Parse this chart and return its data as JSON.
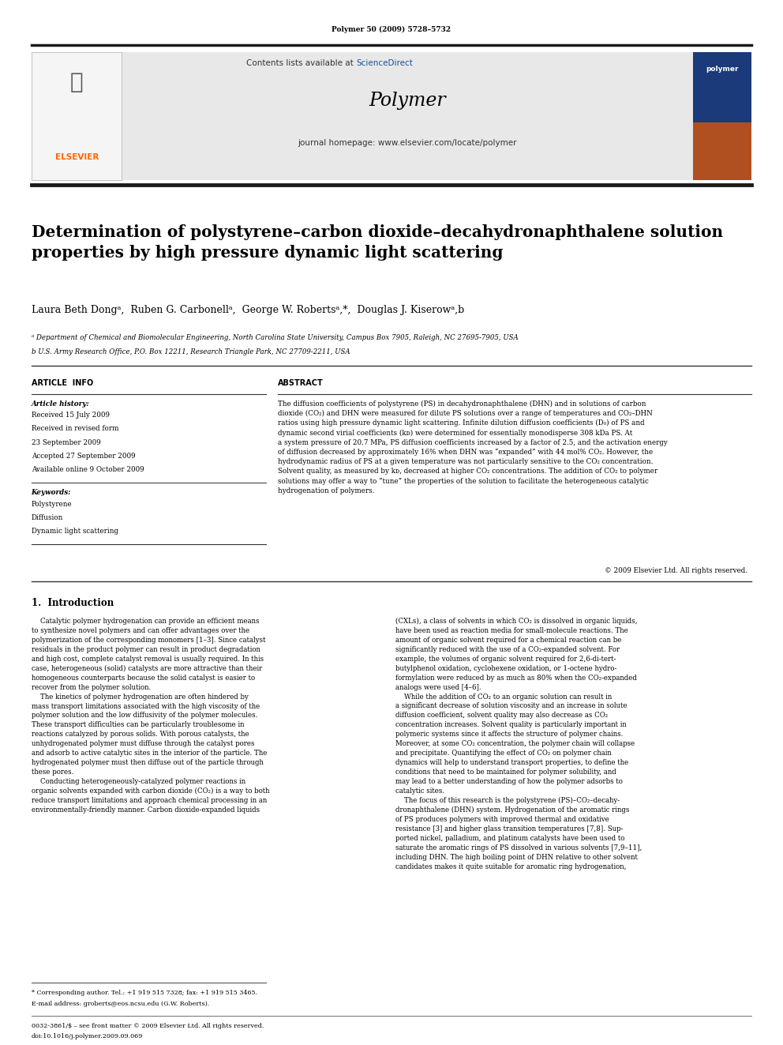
{
  "page_width": 9.92,
  "page_height": 13.23,
  "background_color": "#ffffff",
  "top_citation": "Polymer 50 (2009) 5728–5732",
  "header_bg": "#e8e8e8",
  "header_contents_text": "Contents lists available at ",
  "header_sciencedirect": "ScienceDirect",
  "header_journal": "Polymer",
  "header_homepage": "journal homepage: www.elsevier.com/locate/polymer",
  "dark_bar_color": "#1a1a1a",
  "elsevier_color": "#ff6600",
  "title": "Determination of polystyrene–carbon dioxide–decahydronaphthalene solution\nproperties by high pressure dynamic light scattering",
  "authors": "Laura Beth Dongᵃ,  Ruben G. Carbonellᵃ,  George W. Robertsᵃ,*,  Douglas J. Kiserowᵃ,b",
  "affil_a": "ᵃ Department of Chemical and Biomolecular Engineering, North Carolina State University, Campus Box 7905, Raleigh, NC 27695-7905, USA",
  "affil_b": "b U.S. Army Research Office, P.O. Box 12211, Research Triangle Park, NC 27709-2211, USA",
  "article_info_title": "ARTICLE  INFO",
  "abstract_title": "ABSTRACT",
  "article_history_label": "Article history:",
  "received1": "Received 15 July 2009",
  "received2": "Received in revised form",
  "received2b": "23 September 2009",
  "accepted": "Accepted 27 September 2009",
  "available": "Available online 9 October 2009",
  "keywords_label": "Keywords:",
  "keyword1": "Polystyrene",
  "keyword2": "Diffusion",
  "keyword3": "Dynamic light scattering",
  "abstract_text": "The diffusion coefficients of polystyrene (PS) in decahydronaphthalene (DHN) and in solutions of carbon\ndioxide (CO₂) and DHN were measured for dilute PS solutions over a range of temperatures and CO₂–DHN\nratios using high pressure dynamic light scattering. Infinite dilution diffusion coefficients (D₀) of PS and\ndynamic second virial coefficients (kᴅ) were determined for essentially monodisperse 308 kDa PS. At\na system pressure of 20.7 MPa, PS diffusion coefficients increased by a factor of 2.5, and the activation energy\nof diffusion decreased by approximately 16% when DHN was “expanded” with 44 mol% CO₂. However, the\nhydrodynamic radius of PS at a given temperature was not particularly sensitive to the CO₂ concentration.\nSolvent quality, as measured by kᴅ, decreased at higher CO₂ concentrations. The addition of CO₂ to polymer\nsolutions may offer a way to “tune” the properties of the solution to facilitate the heterogeneous catalytic\nhydrogenation of polymers.",
  "copyright": "© 2009 Elsevier Ltd. All rights reserved.",
  "section1_title": "1.  Introduction",
  "intro_col1": "    Catalytic polymer hydrogenation can provide an efficient means\nto synthesize novel polymers and can offer advantages over the\npolymerization of the corresponding monomers [1–3]. Since catalyst\nresiduals in the product polymer can result in product degradation\nand high cost, complete catalyst removal is usually required. In this\ncase, heterogeneous (solid) catalysts are more attractive than their\nhomogeneous counterparts because the solid catalyst is easier to\nrecover from the polymer solution.\n    The kinetics of polymer hydrogenation are often hindered by\nmass transport limitations associated with the high viscosity of the\npolymer solution and the low diffusivity of the polymer molecules.\nThese transport difficulties can be particularly troublesome in\nreactions catalyzed by porous solids. With porous catalysts, the\nunhydrogenated polymer must diffuse through the catalyst pores\nand adsorb to active catalytic sites in the interior of the particle. The\nhydrogenated polymer must then diffuse out of the particle through\nthese pores.\n    Conducting heterogeneously-catalyzed polymer reactions in\norganic solvents expanded with carbon dioxide (CO₂) is a way to both\nreduce transport limitations and approach chemical processing in an\nenvironmentally-friendly manner. Carbon dioxide-expanded liquids",
  "intro_col2": "(CXLs), a class of solvents in which CO₂ is dissolved in organic liquids,\nhave been used as reaction media for small-molecule reactions. The\namount of organic solvent required for a chemical reaction can be\nsignificantly reduced with the use of a CO₂-expanded solvent. For\nexample, the volumes of organic solvent required for 2,6-di-tert-\nbutylphenol oxidation, cyclohexene oxidation, or 1-octene hydro-\nformylation were reduced by as much as 80% when the CO₂-expanded\nanalogs were used [4–6].\n    While the addition of CO₂ to an organic solution can result in\na significant decrease of solution viscosity and an increase in solute\ndiffusion coefficient, solvent quality may also decrease as CO₂\nconcentration increases. Solvent quality is particularly important in\npolymeric systems since it affects the structure of polymer chains.\nMoreover, at some CO₂ concentration, the polymer chain will collapse\nand precipitate. Quantifying the effect of CO₂ on polymer chain\ndynamics will help to understand transport properties, to define the\nconditions that need to be maintained for polymer solubility, and\nmay lead to a better understanding of how the polymer adsorbs to\ncatalytic sites.\n    The focus of this research is the polystyrene (PS)–CO₂–decahy-\ndronaphthalene (DHN) system. Hydrogenation of the aromatic rings\nof PS produces polymers with improved thermal and oxidative\nresistance [3] and higher glass transition temperatures [7,8]. Sup-\nported nickel, palladium, and platinum catalysts have been used to\nsaturate the aromatic rings of PS dissolved in various solvents [7,9–11],\nincluding DHN. The high boiling point of DHN relative to other solvent\ncandidates makes it quite suitable for aromatic ring hydrogenation,",
  "footnote_star": "* Corresponding author. Tel.: +1 919 515 7328; fax: +1 919 515 3465.",
  "footnote_email": "E-mail address: groberts@eos.ncsu.edu (G.W. Roberts).",
  "footer_issn": "0032-3861/$ – see front matter © 2009 Elsevier Ltd. All rights reserved.",
  "footer_doi": "doi:10.1016/j.polymer.2009.09.069"
}
